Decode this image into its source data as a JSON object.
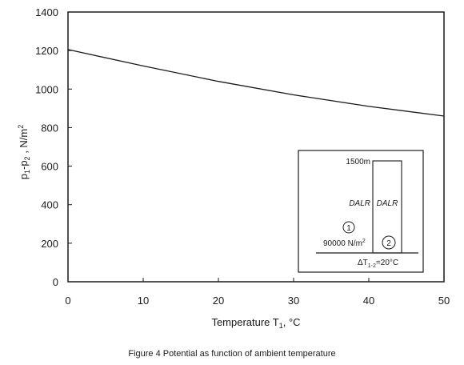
{
  "chart_data": {
    "type": "line",
    "xlabel": "Temperature T",
    "xlabel_sub": "1",
    "xlabel_unit": ", °C",
    "ylabel": "p",
    "ylabel_sub1": "1",
    "ylabel_mid": "-p",
    "ylabel_sub2": "2",
    "ylabel_unit": " , N/m",
    "ylabel_sup": "2",
    "xlim": [
      0,
      50
    ],
    "ylim": [
      0,
      1400
    ],
    "xticks": [
      0,
      10,
      20,
      30,
      40,
      50
    ],
    "yticks": [
      0,
      200,
      400,
      600,
      800,
      1000,
      1200,
      1400
    ],
    "series": [
      {
        "x": [
          0,
          10,
          20,
          30,
          40,
          50
        ],
        "y": [
          1205,
          1120,
          1040,
          970,
          910,
          860
        ]
      }
    ]
  },
  "inset": {
    "height_label": "1500m",
    "left_column_label": "DALR",
    "right_column_label": "DALR",
    "circle_1": "1",
    "circle_2": "2",
    "pressure_label": "90000 N/m",
    "pressure_sup": "2",
    "delta_prefix": "ΔT",
    "delta_sub": "1-2",
    "delta_value": "=20°C"
  },
  "caption": "Figure 4  Potential as function of ambient temperature"
}
